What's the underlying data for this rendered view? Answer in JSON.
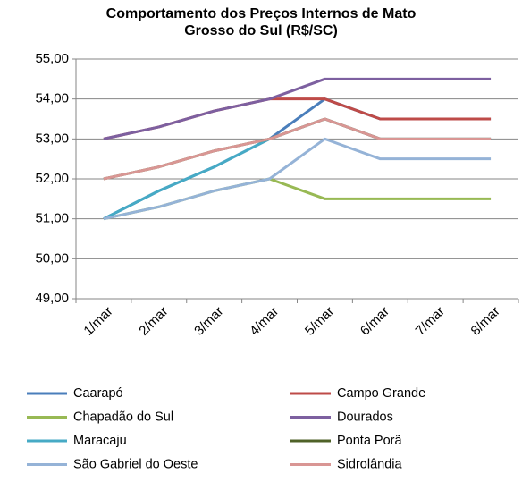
{
  "chart_data": {
    "type": "line",
    "title": "Comportamento dos Preços Internos de Mato Grosso do Sul (R$/SC)",
    "categories": [
      "1/mar",
      "2/mar",
      "3/mar",
      "4/mar",
      "5/mar",
      "6/mar",
      "7/mar",
      "8/mar"
    ],
    "series": [
      {
        "name": "Caarapó",
        "color": "#4a7ebb",
        "values": [
          51,
          51.7,
          52.3,
          53,
          54,
          53.5,
          53.5,
          53.5
        ]
      },
      {
        "name": "Campo Grande",
        "color": "#be4b48",
        "values": [
          53,
          53.3,
          53.7,
          54,
          54,
          53.5,
          53.5,
          53.5
        ]
      },
      {
        "name": "Chapadão do Sul",
        "color": "#98b954",
        "values": [
          51,
          51.3,
          51.7,
          52,
          51.5,
          51.5,
          51.5,
          51.5
        ]
      },
      {
        "name": "Dourados",
        "color": "#7d60a0",
        "values": [
          53,
          53.3,
          53.7,
          54,
          54.5,
          54.5,
          54.5,
          54.5
        ]
      },
      {
        "name": "Maracaju",
        "color": "#46aac5",
        "values": [
          51,
          51.7,
          52.3,
          53,
          53.5,
          53,
          53,
          53
        ]
      },
      {
        "name": "Ponta Porã",
        "color": "#4f6228",
        "values": [
          52,
          52.3,
          52.7,
          53,
          53.5,
          53,
          53,
          53
        ]
      },
      {
        "name": "São Gabriel do Oeste",
        "color": "#95b3d7",
        "values": [
          51,
          51.3,
          51.7,
          52,
          53,
          52.5,
          52.5,
          52.5
        ]
      },
      {
        "name": "Sidrolândia",
        "color": "#d99694",
        "values": [
          52,
          52.3,
          52.7,
          53,
          53.5,
          53,
          53,
          53
        ]
      }
    ],
    "ylim": [
      49,
      55
    ],
    "yticks": [
      {
        "value": 49,
        "label": "49,00"
      },
      {
        "value": 50,
        "label": "50,00"
      },
      {
        "value": 51,
        "label": "51,00"
      },
      {
        "value": 52,
        "label": "52,00"
      },
      {
        "value": 53,
        "label": "53,00"
      },
      {
        "value": 54,
        "label": "54,00"
      },
      {
        "value": 55,
        "label": "55,00"
      }
    ],
    "grid": true
  }
}
